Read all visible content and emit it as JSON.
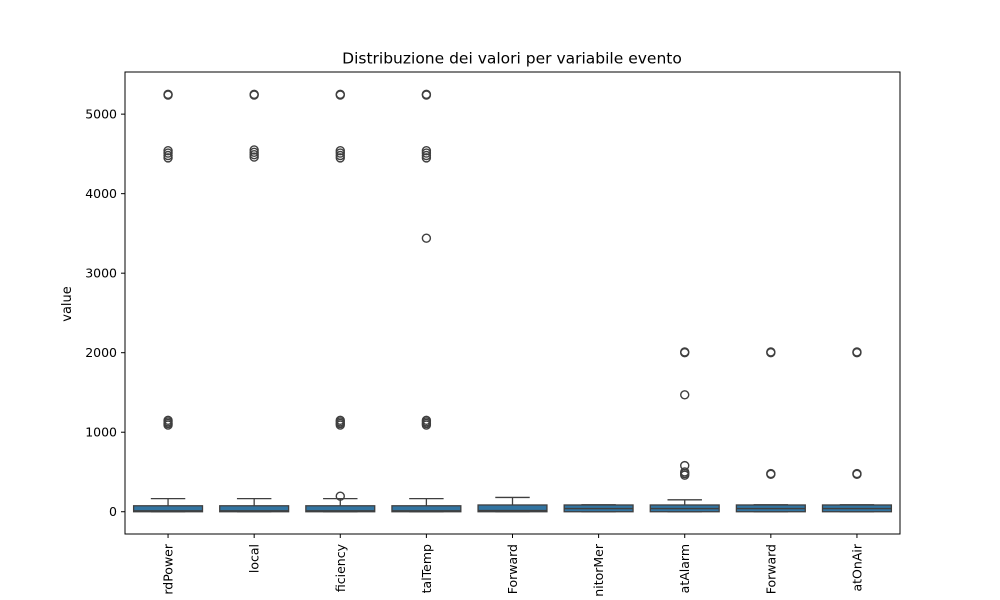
{
  "chart_data": {
    "type": "box",
    "title": "Distribuzione dei valori per variabile evento",
    "xlabel": "",
    "ylabel": "value",
    "ylim": [
      -280,
      5530
    ],
    "yticks": [
      0,
      1000,
      2000,
      3000,
      4000,
      5000
    ],
    "grid": false,
    "legend": "none",
    "box_color": "#3274a1",
    "categories": [
      "rdPower",
      "local",
      "ficiency",
      "talTemp",
      "Forward",
      "nitorMer",
      "atAlarm",
      "Forward",
      "atOnAir"
    ],
    "boxes": [
      {
        "q1": 0,
        "median": 12,
        "q3": 75,
        "whisker_low": 0,
        "whisker_high": 165,
        "outliers": [
          1090,
          1110,
          1130,
          1150,
          4450,
          4480,
          4510,
          4540,
          5240,
          5250
        ]
      },
      {
        "q1": 0,
        "median": 12,
        "q3": 75,
        "whisker_low": 0,
        "whisker_high": 165,
        "outliers": [
          4460,
          4490,
          4520,
          4550,
          5240,
          5250
        ]
      },
      {
        "q1": 0,
        "median": 12,
        "q3": 75,
        "whisker_low": 0,
        "whisker_high": 165,
        "outliers": [
          195,
          1090,
          1110,
          1130,
          1150,
          4450,
          4480,
          4510,
          4540,
          5240,
          5250
        ]
      },
      {
        "q1": 0,
        "median": 12,
        "q3": 75,
        "whisker_low": 0,
        "whisker_high": 165,
        "outliers": [
          1090,
          1110,
          1130,
          1150,
          3440,
          4450,
          4480,
          4510,
          4540,
          5240,
          5250
        ]
      },
      {
        "q1": 0,
        "median": 15,
        "q3": 85,
        "whisker_low": 0,
        "whisker_high": 180,
        "outliers": []
      },
      {
        "q1": 0,
        "median": 40,
        "q3": 85,
        "whisker_low": 0,
        "whisker_high": 88,
        "outliers": []
      },
      {
        "q1": 0,
        "median": 40,
        "q3": 85,
        "whisker_low": 0,
        "whisker_high": 150,
        "outliers": [
          460,
          480,
          500,
          580,
          1470,
          2000,
          2010
        ]
      },
      {
        "q1": 0,
        "median": 40,
        "q3": 85,
        "whisker_low": 0,
        "whisker_high": 88,
        "outliers": [
          470,
          480,
          2000,
          2010
        ]
      },
      {
        "q1": 0,
        "median": 40,
        "q3": 85,
        "whisker_low": 0,
        "whisker_high": 88,
        "outliers": [
          470,
          480,
          2000,
          2010
        ]
      }
    ]
  }
}
